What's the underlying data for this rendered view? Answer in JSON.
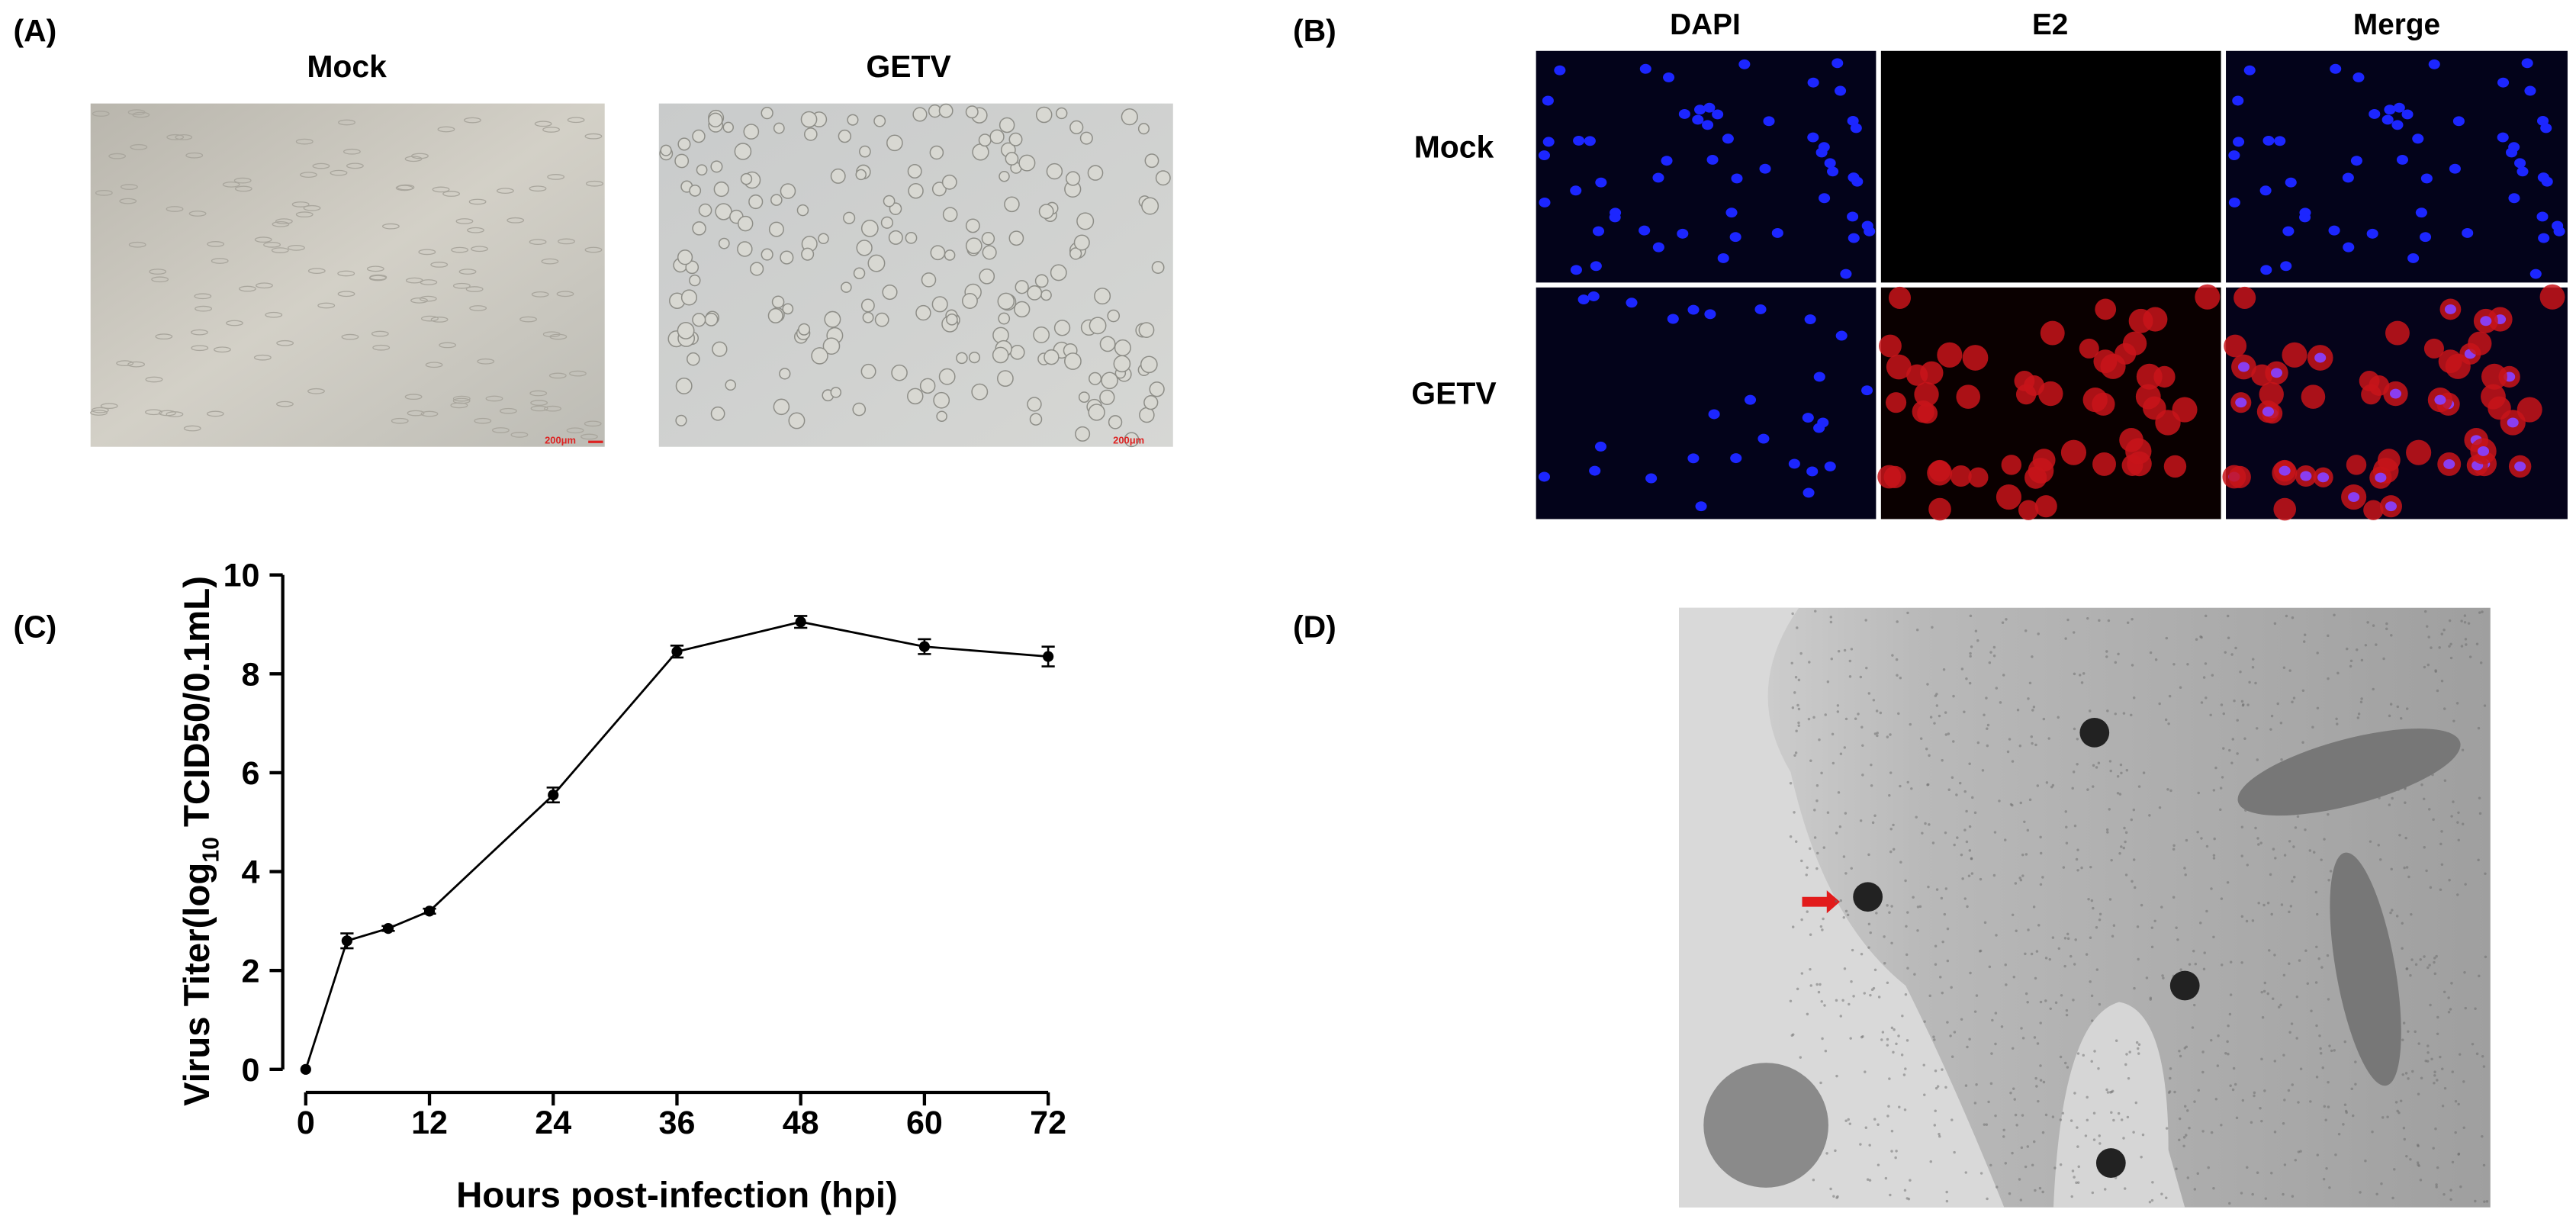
{
  "panel_labels": [
    "(A)",
    "(B)",
    "(C)",
    "(D)"
  ],
  "panel_a": {
    "titles": [
      "Mock",
      "GETV"
    ],
    "scale_bar": "200μm"
  },
  "panel_b": {
    "columns": [
      "DAPI",
      "E2",
      "Merge"
    ],
    "rows": [
      "Mock",
      "GETV"
    ]
  },
  "chart_data": {
    "type": "line",
    "ylabel": [
      "Virus Titer(log",
      "10",
      " TCID50/0.1mL)"
    ],
    "xlabel": "Hours post-infection (hpi)",
    "x": [
      0,
      4,
      8,
      12,
      24,
      36,
      48,
      60,
      72
    ],
    "series": [
      {
        "color": "#000000",
        "values": [
          0,
          2.6,
          2.85,
          3.2,
          5.55,
          8.45,
          9.05,
          8.55,
          8.35
        ],
        "errors": [
          0,
          0.15,
          0.05,
          0.05,
          0.15,
          0.12,
          0.12,
          0.15,
          0.2
        ]
      }
    ],
    "xlim": [
      0,
      72
    ],
    "xticks": [
      0,
      12,
      24,
      36,
      48,
      60,
      72
    ],
    "ylim": [
      0,
      10
    ],
    "yticks": [
      0,
      2,
      4,
      6,
      8,
      10
    ]
  }
}
